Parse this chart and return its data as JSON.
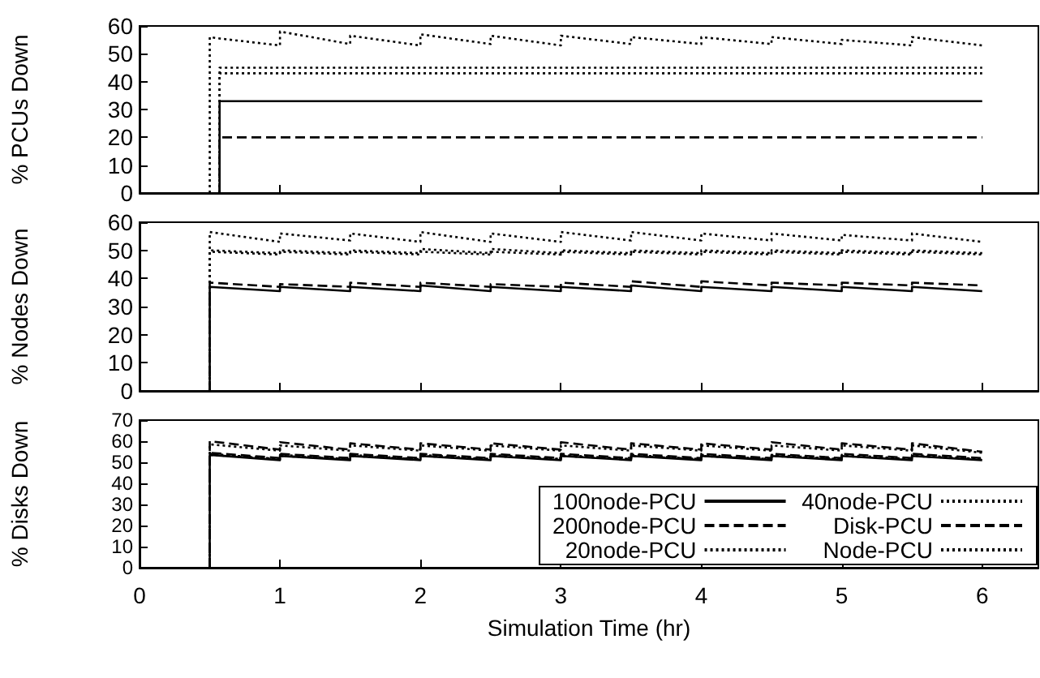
{
  "chart_data": [
    {
      "type": "line",
      "ylabel": "% PCUs Down",
      "xlim": [
        0,
        6.4
      ],
      "xticks": [
        0,
        1,
        2,
        3,
        4,
        5,
        6
      ],
      "ylim": [
        0,
        60
      ],
      "yticks": [
        0,
        10,
        20,
        30,
        40,
        50,
        60
      ],
      "tick_labels": "y",
      "grid": false,
      "legend": false,
      "marker": "none",
      "x": [
        0.5,
        0.5,
        0.57,
        0.57,
        1,
        1,
        1.5,
        1.5,
        2,
        2,
        2.5,
        2.5,
        3,
        3,
        3.5,
        3.5,
        4,
        4,
        4.5,
        4.5,
        5,
        5,
        5.5,
        5.5,
        6
      ],
      "series": [
        {
          "color": "#000000",
          "line_style": "solid",
          "values": [
            null,
            null,
            0,
            33,
            33,
            33,
            33,
            33,
            33,
            33,
            33,
            33,
            33,
            33,
            33,
            33,
            33,
            33,
            33,
            33,
            33,
            33,
            33,
            33,
            33
          ]
        },
        {
          "color": "#000000",
          "line_style": "dashed",
          "values": [
            null,
            null,
            0,
            20,
            20,
            20,
            20,
            20,
            20,
            20,
            20,
            20,
            20,
            20,
            20,
            20,
            20,
            20,
            20,
            20,
            20,
            20,
            20,
            20,
            20
          ]
        },
        {
          "color": "#000000",
          "line_style": "dotted",
          "values": [
            null,
            null,
            0,
            43,
            43,
            43,
            43,
            43,
            43,
            43,
            43,
            43,
            43,
            43,
            43,
            43,
            43,
            43,
            43,
            43,
            43,
            43,
            43,
            43,
            43
          ]
        },
        {
          "color": "#000000",
          "line_style": "dotted",
          "values": [
            null,
            null,
            0,
            45,
            45,
            45,
            45,
            45,
            45,
            45,
            45,
            45,
            45,
            45,
            45,
            45,
            45,
            45,
            45,
            45,
            45,
            45,
            45,
            45,
            45
          ]
        },
        {
          "color": "#000000",
          "line_style": "dotted",
          "values": [
            0,
            56,
            55.5,
            55.5,
            53,
            58,
            53.5,
            56.5,
            53,
            57,
            53.5,
            56.5,
            53,
            56.5,
            53.5,
            56,
            53.5,
            56,
            53.5,
            56,
            53.5,
            55,
            53,
            56,
            53
          ]
        }
      ]
    },
    {
      "type": "line",
      "ylabel": "% Nodes Down",
      "xlim": [
        0,
        6.4
      ],
      "xticks": [
        0,
        1,
        2,
        3,
        4,
        5,
        6
      ],
      "ylim": [
        0,
        60
      ],
      "yticks": [
        0,
        10,
        20,
        30,
        40,
        50,
        60
      ],
      "tick_labels": "y",
      "grid": false,
      "legend": false,
      "marker": "none",
      "x": [
        0.5,
        0.5,
        1,
        1,
        1.5,
        1.5,
        2,
        2,
        2.5,
        2.5,
        3,
        3,
        3.5,
        3.5,
        4,
        4,
        4.5,
        4.5,
        5,
        5,
        5.5,
        5.5,
        6
      ],
      "series": [
        {
          "color": "#000000",
          "line_style": "solid",
          "values": [
            0,
            37,
            35.5,
            37,
            35.5,
            37,
            35.5,
            37.5,
            35.5,
            37,
            35.5,
            37,
            35.5,
            37.5,
            35.5,
            37,
            35.5,
            37,
            35.5,
            37,
            35.5,
            37,
            35.5
          ]
        },
        {
          "color": "#000000",
          "line_style": "dashed",
          "values": [
            0,
            38.5,
            37,
            38,
            37,
            38.5,
            37,
            38.5,
            37,
            38,
            37,
            38.5,
            37,
            39,
            37,
            39,
            37.5,
            38.5,
            37.5,
            38.5,
            37.5,
            38.5,
            37.5
          ]
        },
        {
          "color": "#000000",
          "line_style": "dotted",
          "values": [
            0,
            49.5,
            48.5,
            49.5,
            48.5,
            49.5,
            48.5,
            49.5,
            48.5,
            49.5,
            48.5,
            49.5,
            48.5,
            49.5,
            48.5,
            49.5,
            48.5,
            49.5,
            48.5,
            49.5,
            48.5,
            49.5,
            48.5
          ]
        },
        {
          "color": "#000000",
          "line_style": "dotted",
          "values": [
            0,
            50,
            49,
            50,
            49,
            50,
            49,
            50.5,
            49,
            50.5,
            49,
            50,
            49,
            50,
            49,
            50,
            49,
            50,
            49,
            50,
            49,
            50,
            49
          ]
        },
        {
          "color": "#000000",
          "line_style": "dotted",
          "values": [
            0,
            56.5,
            53,
            56,
            53.5,
            56,
            53,
            56.5,
            53,
            56,
            53,
            56.5,
            53.5,
            56.5,
            53.5,
            56,
            53.5,
            56,
            53.5,
            55.5,
            53.5,
            56,
            53
          ]
        }
      ]
    },
    {
      "type": "line",
      "ylabel": "% Disks Down",
      "xlabel": "Simulation Time (hr)",
      "xlim": [
        0,
        6.4
      ],
      "xticks": [
        0,
        1,
        2,
        3,
        4,
        5,
        6
      ],
      "ylim": [
        0,
        70
      ],
      "yticks": [
        0,
        10,
        20,
        30,
        40,
        50,
        60,
        70
      ],
      "grid": false,
      "legend": "bottom right",
      "marker": "none",
      "x": [
        0.5,
        0.5,
        1,
        1,
        1.5,
        1.5,
        2,
        2,
        2.5,
        2.5,
        3,
        3,
        3.5,
        3.5,
        4,
        4,
        4.5,
        4.5,
        5,
        5,
        5.5,
        5.5,
        6
      ],
      "series": [
        {
          "name": "100node-PCU",
          "color": "#000000",
          "line_style": "solid",
          "values": [
            0,
            53.5,
            51,
            53,
            51,
            53,
            51,
            53,
            51,
            53,
            51,
            53,
            51,
            53,
            51,
            53,
            51,
            53,
            51,
            53,
            51,
            53,
            51
          ]
        },
        {
          "name": "200node-PCU",
          "color": "#000000",
          "line_style": "dashed",
          "values": [
            0,
            54.5,
            52,
            54,
            52,
            54,
            52,
            54,
            52,
            54,
            52,
            54,
            52,
            54,
            52,
            54,
            52,
            54,
            52,
            54,
            52,
            54,
            52
          ]
        },
        {
          "name": "20node-PCU",
          "color": "#000000",
          "line_style": "dotted",
          "values": [
            0,
            54,
            51.5,
            53.5,
            51.5,
            53.5,
            51.5,
            53.5,
            51.5,
            53.5,
            51.5,
            53.5,
            51.5,
            53.5,
            51.5,
            53.5,
            51.5,
            53.5,
            51.5,
            53.5,
            51.5,
            53.5,
            51.5
          ]
        },
        {
          "name": "40node-PCU",
          "color": "#000000",
          "line_style": "dotted",
          "values": [
            0,
            53.5,
            51.5,
            53,
            51.5,
            53,
            51.5,
            53,
            51.5,
            53,
            51.5,
            53,
            51.5,
            53,
            51.5,
            53,
            51.5,
            53,
            51.5,
            53,
            51.5,
            53,
            51.5
          ]
        },
        {
          "name": "Disk-PCU",
          "color": "#000000",
          "line_style": "dashed",
          "values": [
            0,
            60,
            56,
            59.5,
            56,
            59,
            56,
            59,
            56,
            59,
            56,
            59.5,
            56,
            59,
            56,
            59,
            56,
            59.5,
            56,
            59,
            56,
            59,
            55
          ]
        },
        {
          "name": "Node-PCU",
          "color": "#000000",
          "line_style": "dotted",
          "values": [
            0,
            58.5,
            55.5,
            58,
            55.5,
            58,
            55.5,
            58,
            55.5,
            58,
            55.5,
            58,
            55.5,
            58,
            55.5,
            58,
            55.5,
            58,
            55.5,
            58,
            55.5,
            58,
            54.5
          ]
        }
      ]
    }
  ]
}
